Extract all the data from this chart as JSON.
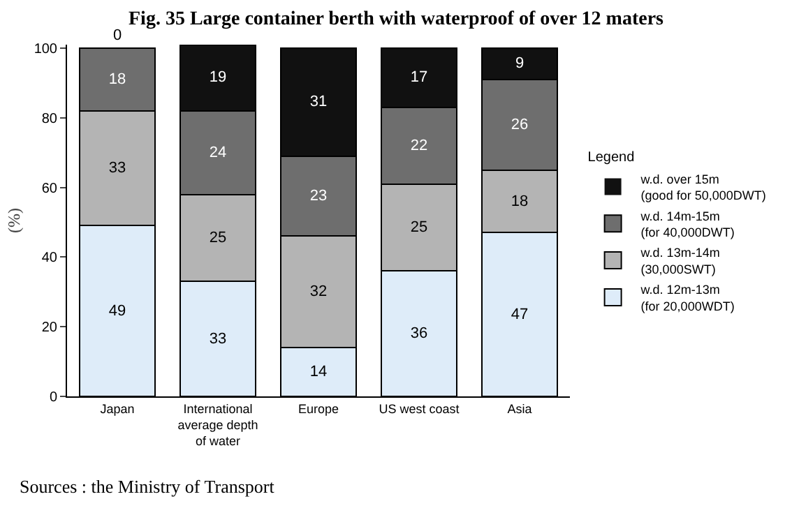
{
  "chart_data": {
    "type": "bar",
    "title": "Fig. 35 Large container berth with waterproof of over 12 maters",
    "ylabel": "(%)",
    "legend_title": "Legend",
    "categories": [
      "Japan",
      "International average depth of water",
      "Europe",
      "US west coast",
      "Asia"
    ],
    "stacked": true,
    "data_labels": true,
    "ylim": [
      0,
      101
    ],
    "yticks": [
      0,
      20,
      40,
      60,
      80,
      100
    ],
    "grid": false,
    "legend": "right",
    "series": [
      {
        "name": "w.d. 12m-13m\n(for 20,000WDT)",
        "color": "#deecf9",
        "values": [
          49,
          33,
          14,
          36,
          47
        ]
      },
      {
        "name": "w.d. 13m-14m\n(30,000SWT)",
        "color": "#b4b4b4",
        "values": [
          33,
          25,
          32,
          25,
          18
        ]
      },
      {
        "name": "w.d. 14m-15m\n(for 40,000DWT)",
        "color": "#6e6e6e",
        "values": [
          18,
          24,
          23,
          22,
          26
        ]
      },
      {
        "name": "w.d. over 15m\n(good for 50,000DWT)",
        "color": "#111111",
        "values": [
          0,
          19,
          31,
          17,
          9
        ]
      }
    ],
    "annotations": [
      "Sources : the Ministry of Transport"
    ]
  }
}
